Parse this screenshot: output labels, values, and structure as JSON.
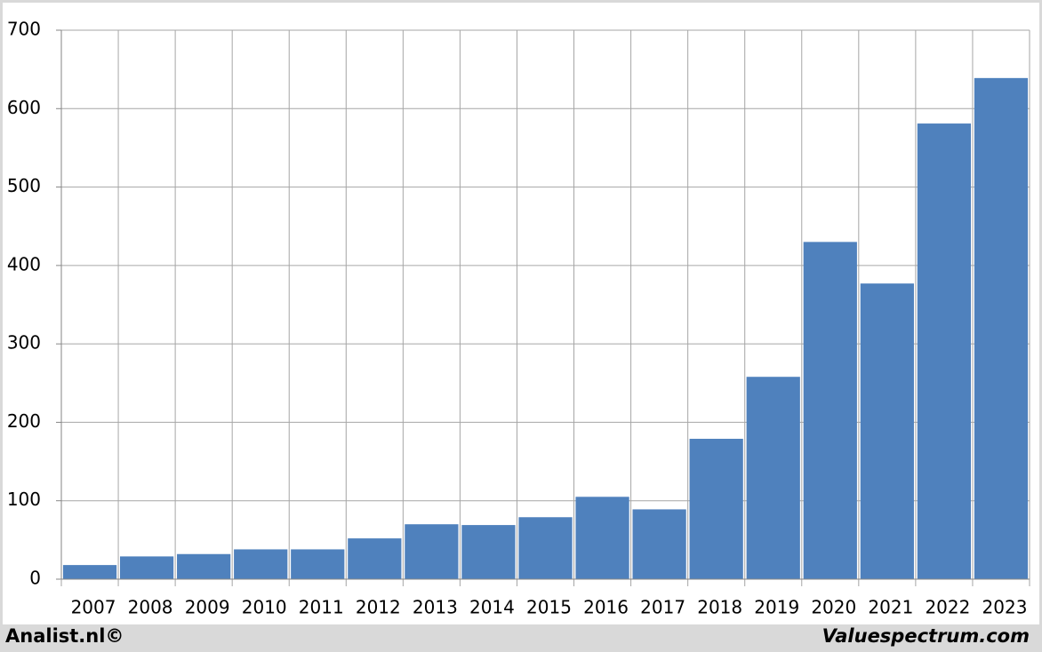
{
  "chart_data": {
    "type": "bar",
    "categories": [
      "2007",
      "2008",
      "2009",
      "2010",
      "2011",
      "2012",
      "2013",
      "2014",
      "2015",
      "2016",
      "2017",
      "2018",
      "2019",
      "2020",
      "2021",
      "2022",
      "2023"
    ],
    "values": [
      18,
      29,
      32,
      38,
      38,
      52,
      70,
      69,
      79,
      105,
      89,
      179,
      258,
      430,
      377,
      581,
      639
    ],
    "color": "#4f81bd",
    "ylim": [
      0,
      700
    ],
    "yticks": [
      0,
      100,
      200,
      300,
      400,
      500,
      600,
      700
    ],
    "grid": true
  },
  "footer": {
    "left": "Analist.nl©",
    "right": "Valuespectrum.com"
  }
}
